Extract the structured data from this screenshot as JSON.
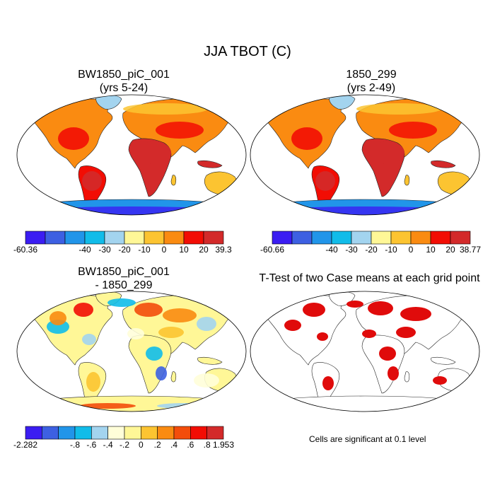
{
  "page": {
    "title": "JJA TBOT (C)"
  },
  "panels": [
    {
      "title_line1": "BW1850_piC_001",
      "title_line2": "(yrs 5-24)"
    },
    {
      "title_line1": "1850_299",
      "title_line2": "(yrs 2-49)"
    },
    {
      "title_line1": "BW1850_piC_001",
      "title_line2": "- 1850_299"
    },
    {
      "title_line1": "T-Test of two Case means at each grid point",
      "title_line2": ""
    }
  ],
  "note": "Cells are significant at 0.1 level",
  "colors": {
    "temp_bar": [
      "#3b1df2",
      "#3d60e2",
      "#2195e9",
      "#11bce9",
      "#a3d4ef",
      "#fff797",
      "#fcc431",
      "#fa8b11",
      "#f20d04",
      "#d32a2a"
    ],
    "diff_bar": [
      "#3b1df2",
      "#3d60e2",
      "#2195e9",
      "#11bce9",
      "#a3d4ef",
      "#fffed9",
      "#fff797",
      "#fcc431",
      "#fa8b11",
      "#f34d0b",
      "#f20d04",
      "#d32a2a"
    ],
    "ttest": "#e00b0b",
    "map_outline": "#222222"
  },
  "chart_data": [
    {
      "type": "heatmap",
      "title": "BW1850_piC_001 (yrs 5-24)",
      "colorbar": {
        "min": -60.36,
        "max": 39.3,
        "levels": [
          -50,
          -40,
          -30,
          -20,
          -10,
          0,
          10,
          20,
          30
        ]
      },
      "colorbar_labels": [
        "-60.36",
        "-40",
        "-30",
        "-20",
        "-10",
        "0",
        "10",
        "20",
        "39.3"
      ]
    },
    {
      "type": "heatmap",
      "title": "1850_299 (yrs 2-49)",
      "colorbar": {
        "min": -60.66,
        "max": 38.77,
        "levels": [
          -50,
          -40,
          -30,
          -20,
          -10,
          0,
          10,
          20,
          30
        ]
      },
      "colorbar_labels": [
        "-60.66",
        "-40",
        "-30",
        "-20",
        "-10",
        "0",
        "10",
        "20",
        "38.77"
      ]
    },
    {
      "type": "heatmap",
      "title": "BW1850_piC_001 - 1850_299",
      "colorbar": {
        "min": -2.282,
        "max": 1.953,
        "levels": [
          -1,
          -0.8,
          -0.6,
          -0.4,
          -0.2,
          0,
          0.2,
          0.4,
          0.6,
          0.8,
          1
        ]
      },
      "colorbar_labels": [
        "-2.282",
        "-.8",
        "-.6",
        "-.4",
        "-.2",
        "0",
        ".2",
        ".4",
        ".6",
        ".8",
        "1.953"
      ]
    },
    {
      "type": "heatmap",
      "title": "T-Test of two Case means at each grid point",
      "significance_level": 0.1
    }
  ]
}
